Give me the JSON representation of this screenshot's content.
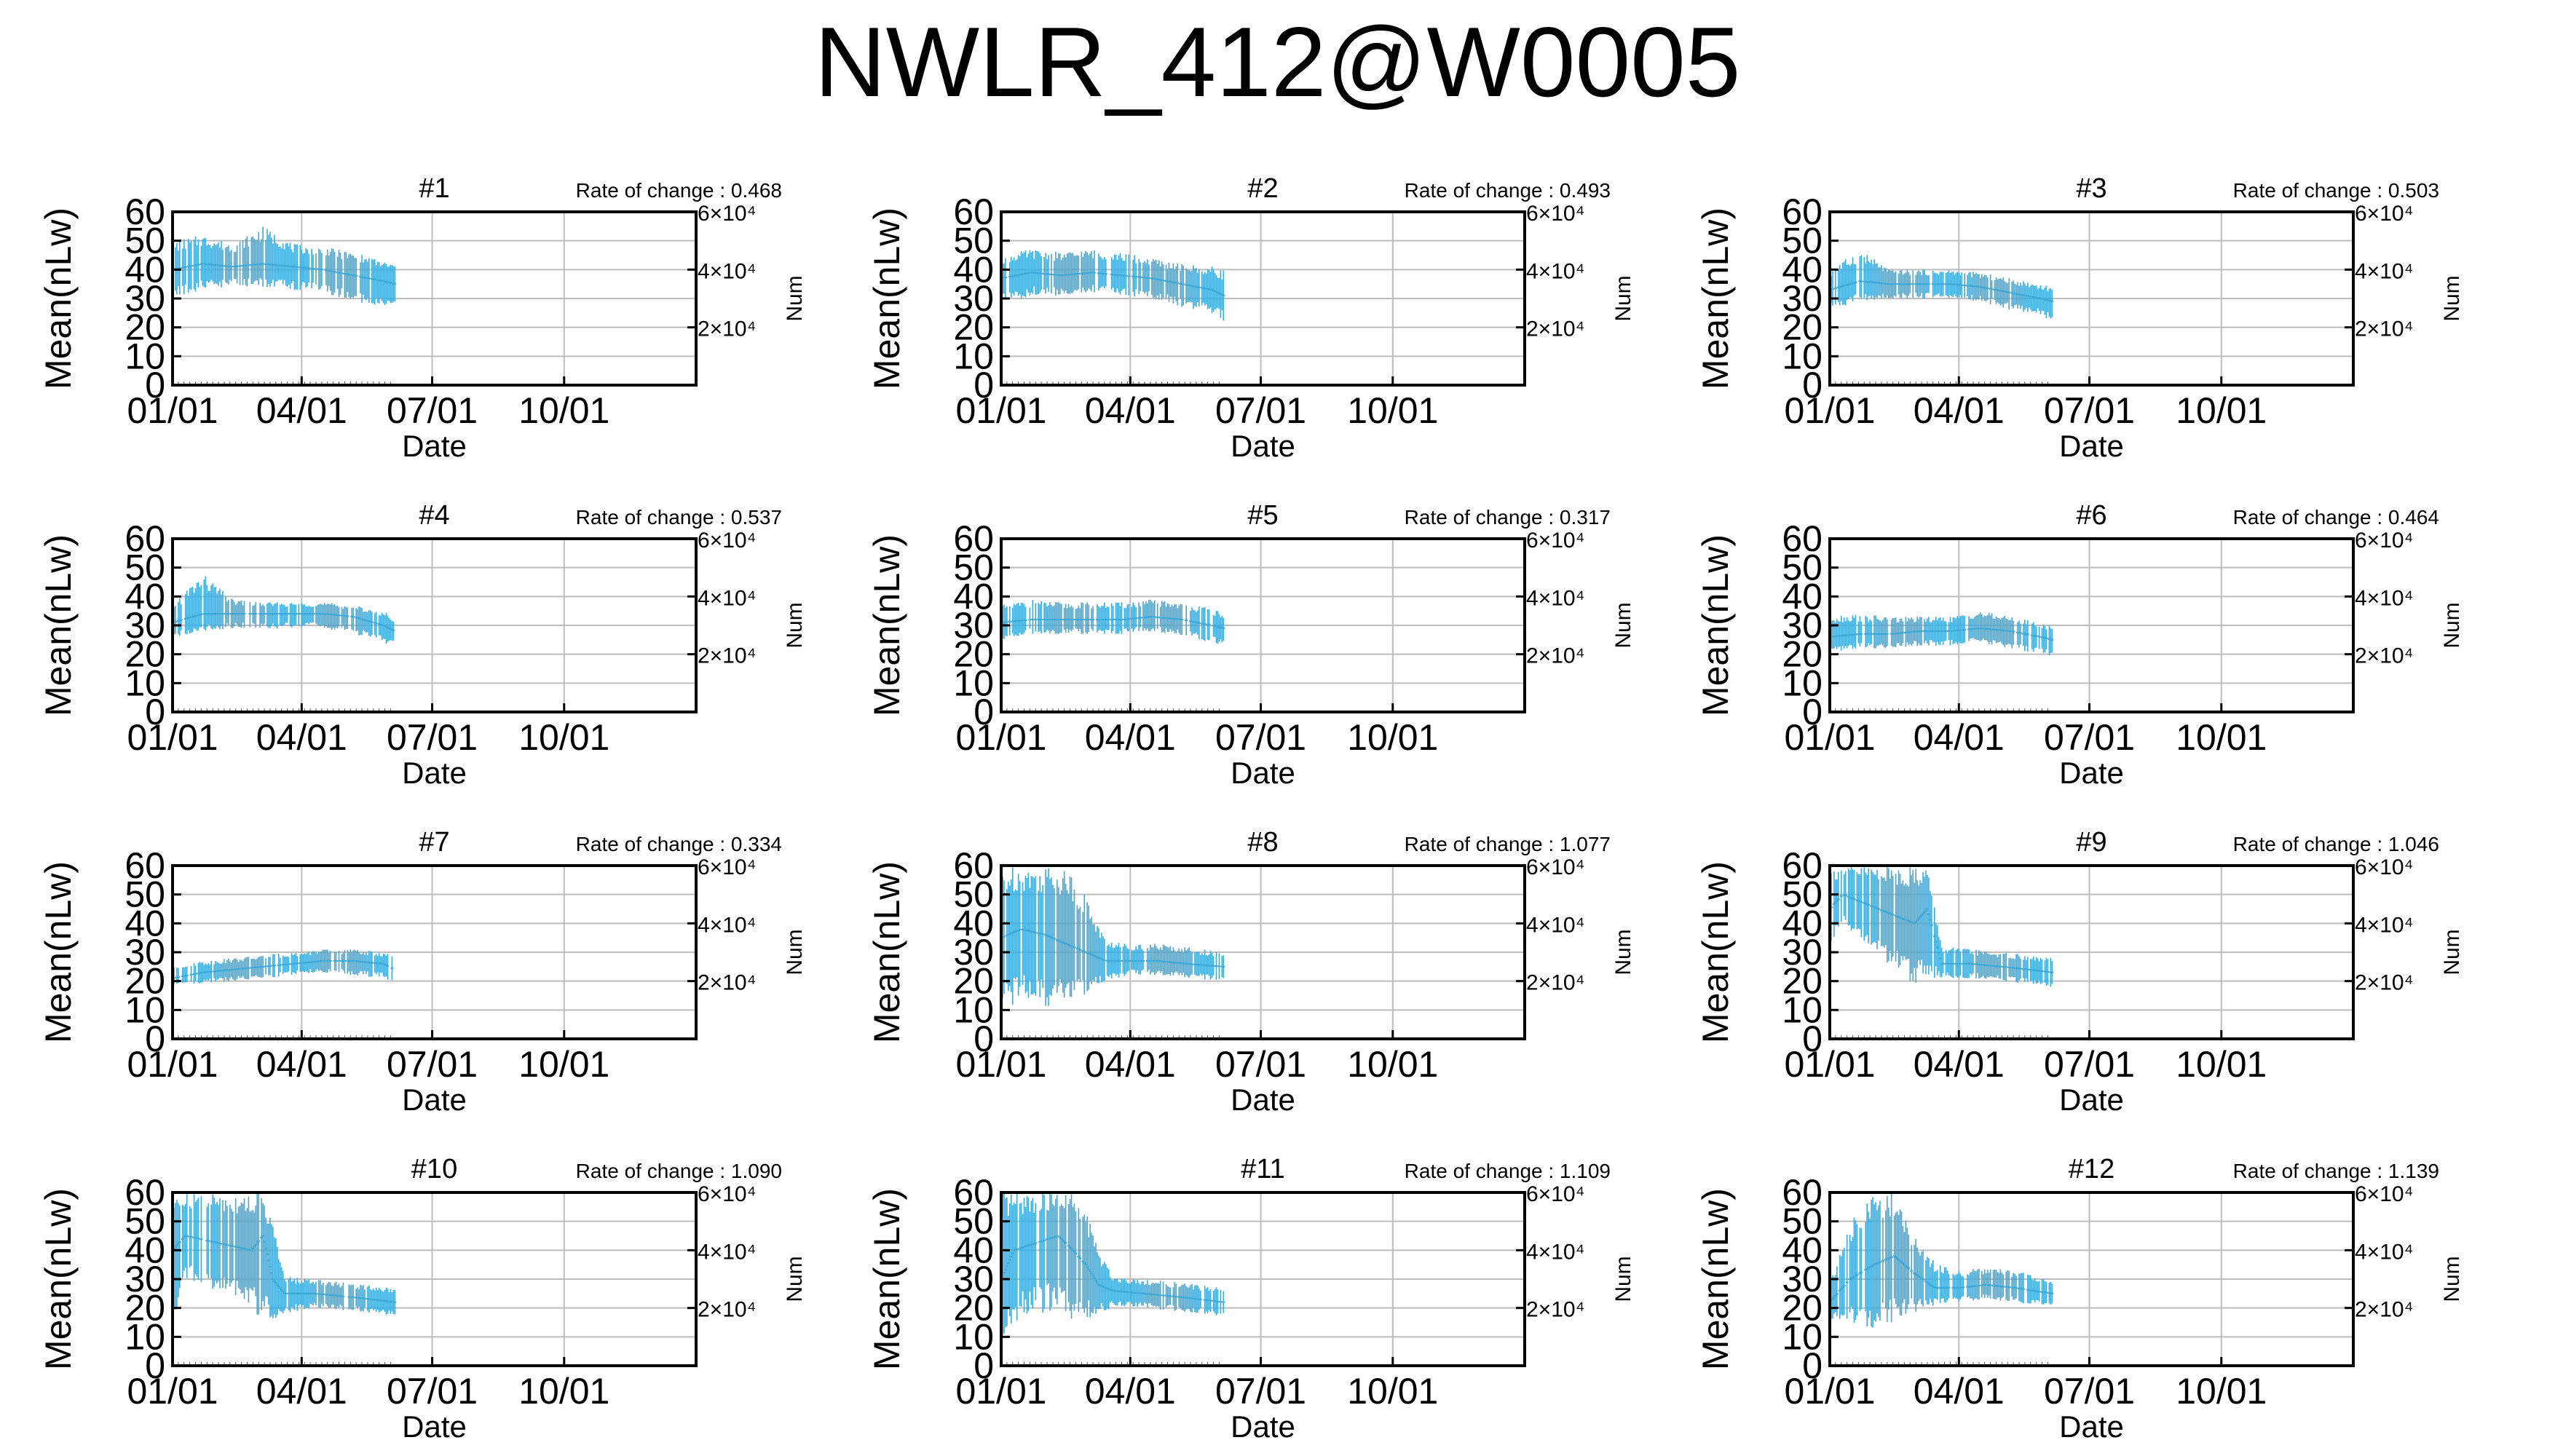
{
  "title": "NWLR_412@W0005",
  "colors": {
    "series": "#3fa9d8",
    "grid": "#bdbdbd",
    "axis": "#000000"
  },
  "chart_data": [
    {
      "type": "line",
      "title": "#1",
      "rate_label": "Rate of change : 0.468",
      "xlabel": "Date",
      "ylabel": "Mean(nLw)",
      "y2label": "Num",
      "xticks": [
        "01/01",
        "04/01",
        "07/01",
        "10/01"
      ],
      "yticks": [
        0,
        10,
        20,
        30,
        40,
        50,
        60
      ],
      "ylim": [
        0,
        60
      ],
      "y2ticks": [
        "2×10⁴",
        "4×10⁴",
        "6×10⁴"
      ],
      "y2ticks_values": [
        20000,
        40000,
        60000
      ],
      "y2lim": [
        0,
        60000
      ],
      "xlim": [
        "2001-01-01",
        "2002-01-01"
      ],
      "x": [
        "2001-01-01",
        "2001-06-05"
      ],
      "series": [
        {
          "x": [
            "2001-01-01",
            "2001-01-22",
            "2001-02-12",
            "2001-03-05",
            "2001-03-26",
            "2001-04-16",
            "2001-05-07",
            "2001-05-28",
            "2001-06-05"
          ],
          "mean": [
            40,
            42,
            41,
            42,
            41,
            40,
            38,
            36,
            35
          ],
          "low": [
            30,
            33,
            34,
            34,
            33,
            32,
            29,
            27,
            28
          ],
          "high": [
            50,
            52,
            49,
            55,
            49,
            48,
            46,
            43,
            42
          ]
        }
      ]
    },
    {
      "type": "line",
      "title": "#2",
      "rate_label": "Rate of change : 0.493",
      "xlabel": "Date",
      "ylabel": "Mean(nLw)",
      "y2label": "Num",
      "xticks": [
        "01/01",
        "04/01",
        "07/01",
        "10/01"
      ],
      "yticks": [
        0,
        10,
        20,
        30,
        40,
        50,
        60
      ],
      "ylim": [
        0,
        60
      ],
      "y2ticks": [
        "2×10⁴",
        "4×10⁴",
        "6×10⁴"
      ],
      "y2ticks_values": [
        20000,
        40000,
        60000
      ],
      "y2lim": [
        0,
        60000
      ],
      "xlim": [
        "2001-01-01",
        "2002-01-01"
      ],
      "series": [
        {
          "x": [
            "2001-01-01",
            "2001-01-22",
            "2001-02-12",
            "2001-03-05",
            "2001-03-26",
            "2001-04-16",
            "2001-05-07",
            "2001-05-28",
            "2001-06-05"
          ],
          "mean": [
            37,
            39,
            38,
            39,
            38,
            37,
            35,
            33,
            31
          ],
          "low": [
            28,
            31,
            31,
            32,
            31,
            30,
            27,
            25,
            22
          ],
          "high": [
            45,
            47,
            46,
            47,
            46,
            44,
            42,
            41,
            40
          ]
        }
      ]
    },
    {
      "type": "line",
      "title": "#3",
      "rate_label": "Rate of change : 0.503",
      "xlabel": "Date",
      "ylabel": "Mean(nLw)",
      "y2label": "Num",
      "xticks": [
        "01/01",
        "04/01",
        "07/01",
        "10/01"
      ],
      "yticks": [
        0,
        10,
        20,
        30,
        40,
        50,
        60
      ],
      "ylim": [
        0,
        60
      ],
      "y2ticks": [
        "2×10⁴",
        "4×10⁴",
        "6×10⁴"
      ],
      "y2ticks_values": [
        20000,
        40000,
        60000
      ],
      "y2lim": [
        0,
        60000
      ],
      "xlim": [
        "2001-01-01",
        "2002-01-01"
      ],
      "series": [
        {
          "x": [
            "2001-01-01",
            "2001-01-22",
            "2001-02-12",
            "2001-03-05",
            "2001-03-26",
            "2001-04-16",
            "2001-05-07",
            "2001-05-28",
            "2001-06-05"
          ],
          "mean": [
            33,
            36,
            35,
            35,
            35,
            34,
            32,
            30,
            29
          ],
          "low": [
            26,
            29,
            30,
            30,
            30,
            29,
            26,
            24,
            22
          ],
          "high": [
            40,
            47,
            40,
            40,
            40,
            39,
            37,
            35,
            34
          ]
        }
      ]
    },
    {
      "type": "line",
      "title": "#4",
      "rate_label": "Rate of change : 0.537",
      "xlabel": "Date",
      "ylabel": "Mean(nLw)",
      "y2label": "Num",
      "xticks": [
        "01/01",
        "04/01",
        "07/01",
        "10/01"
      ],
      "yticks": [
        0,
        10,
        20,
        30,
        40,
        50,
        60
      ],
      "ylim": [
        0,
        60
      ],
      "y2ticks": [
        "2×10⁴",
        "4×10⁴",
        "6×10⁴"
      ],
      "y2ticks_values": [
        20000,
        40000,
        60000
      ],
      "y2lim": [
        0,
        60000
      ],
      "xlim": [
        "2001-01-01",
        "2002-01-01"
      ],
      "series": [
        {
          "x": [
            "2001-01-01",
            "2001-01-22",
            "2001-02-12",
            "2001-03-05",
            "2001-03-26",
            "2001-04-16",
            "2001-05-07",
            "2001-05-28",
            "2001-06-05"
          ],
          "mean": [
            31,
            34,
            34,
            34,
            34,
            34,
            33,
            30,
            28
          ],
          "low": [
            25,
            28,
            29,
            29,
            29,
            29,
            27,
            24,
            22
          ],
          "high": [
            38,
            48,
            39,
            38,
            38,
            38,
            37,
            35,
            33
          ]
        }
      ]
    },
    {
      "type": "line",
      "title": "#5",
      "rate_label": "Rate of change : 0.317",
      "xlabel": "Date",
      "ylabel": "Mean(nLw)",
      "y2label": "Num",
      "xticks": [
        "01/01",
        "04/01",
        "07/01",
        "10/01"
      ],
      "yticks": [
        0,
        10,
        20,
        30,
        40,
        50,
        60
      ],
      "ylim": [
        0,
        60
      ],
      "y2ticks": [
        "2×10⁴",
        "4×10⁴",
        "6×10⁴"
      ],
      "y2ticks_values": [
        20000,
        40000,
        60000
      ],
      "y2lim": [
        0,
        60000
      ],
      "xlim": [
        "2001-01-01",
        "2002-01-01"
      ],
      "series": [
        {
          "x": [
            "2001-01-01",
            "2001-01-22",
            "2001-02-12",
            "2001-03-05",
            "2001-03-26",
            "2001-04-16",
            "2001-05-07",
            "2001-05-28",
            "2001-06-05"
          ],
          "mean": [
            31,
            32,
            32,
            32,
            32,
            33,
            32,
            30,
            29
          ],
          "low": [
            25,
            27,
            27,
            27,
            27,
            28,
            26,
            24,
            23
          ],
          "high": [
            37,
            39,
            38,
            38,
            38,
            39,
            38,
            36,
            34
          ]
        }
      ]
    },
    {
      "type": "line",
      "title": "#6",
      "rate_label": "Rate of change : 0.464",
      "xlabel": "Date",
      "ylabel": "Mean(nLw)",
      "y2label": "Num",
      "xticks": [
        "01/01",
        "04/01",
        "07/01",
        "10/01"
      ],
      "yticks": [
        0,
        10,
        20,
        30,
        40,
        50,
        60
      ],
      "ylim": [
        0,
        60
      ],
      "y2ticks": [
        "2×10⁴",
        "4×10⁴",
        "6×10⁴"
      ],
      "y2ticks_values": [
        20000,
        40000,
        60000
      ],
      "y2lim": [
        0,
        60000
      ],
      "xlim": [
        "2001-01-01",
        "2002-01-01"
      ],
      "series": [
        {
          "x": [
            "2001-01-01",
            "2001-01-22",
            "2001-02-12",
            "2001-03-05",
            "2001-03-26",
            "2001-04-16",
            "2001-05-07",
            "2001-05-28",
            "2001-06-05"
          ],
          "mean": [
            26,
            27,
            27,
            28,
            28,
            29,
            28,
            26,
            25
          ],
          "low": [
            20,
            22,
            22,
            23,
            23,
            24,
            22,
            20,
            19
          ],
          "high": [
            34,
            34,
            33,
            33,
            33,
            35,
            33,
            31,
            30
          ]
        }
      ]
    },
    {
      "type": "line",
      "title": "#7",
      "rate_label": "Rate of change : 0.334",
      "xlabel": "Date",
      "ylabel": "Mean(nLw)",
      "y2label": "Num",
      "xticks": [
        "01/01",
        "04/01",
        "07/01",
        "10/01"
      ],
      "yticks": [
        0,
        10,
        20,
        30,
        40,
        50,
        60
      ],
      "ylim": [
        0,
        60
      ],
      "y2ticks": [
        "2×10⁴",
        "4×10⁴",
        "6×10⁴"
      ],
      "y2ticks_values": [
        20000,
        40000,
        60000
      ],
      "y2lim": [
        0,
        60000
      ],
      "xlim": [
        "2001-01-01",
        "2002-01-01"
      ],
      "series": [
        {
          "x": [
            "2001-01-01",
            "2001-01-22",
            "2001-02-12",
            "2001-03-05",
            "2001-03-26",
            "2001-04-16",
            "2001-05-07",
            "2001-05-28",
            "2001-06-05"
          ],
          "mean": [
            21,
            23,
            24,
            25,
            26,
            27,
            27,
            26,
            24
          ],
          "low": [
            18,
            19,
            20,
            21,
            22,
            23,
            22,
            21,
            19
          ],
          "high": [
            26,
            27,
            28,
            29,
            30,
            31,
            31,
            30,
            29
          ]
        }
      ]
    },
    {
      "type": "line",
      "title": "#8",
      "rate_label": "Rate of change : 1.077",
      "xlabel": "Date",
      "ylabel": "Mean(nLw)",
      "y2label": "Num",
      "xticks": [
        "01/01",
        "04/01",
        "07/01",
        "10/01"
      ],
      "yticks": [
        0,
        10,
        20,
        30,
        40,
        50,
        60
      ],
      "ylim": [
        0,
        60
      ],
      "y2ticks": [
        "2×10⁴",
        "4×10⁴",
        "6×10⁴"
      ],
      "y2ticks_values": [
        20000,
        40000,
        60000
      ],
      "y2lim": [
        0,
        60000
      ],
      "xlim": [
        "2001-01-01",
        "2002-01-01"
      ],
      "series": [
        {
          "x": [
            "2001-01-01",
            "2001-01-15",
            "2001-02-01",
            "2001-02-15",
            "2001-03-01",
            "2001-03-15",
            "2001-04-01",
            "2001-04-20",
            "2001-05-10",
            "2001-06-05"
          ],
          "mean": [
            35,
            38,
            36,
            33,
            30,
            27,
            27,
            27,
            26,
            25
          ],
          "low": [
            10,
            12,
            10,
            13,
            15,
            20,
            22,
            22,
            21,
            20
          ],
          "high": [
            60,
            60,
            60,
            60,
            50,
            34,
            33,
            33,
            32,
            30
          ]
        }
      ]
    },
    {
      "type": "line",
      "title": "#9",
      "rate_label": "Rate of change : 1.046",
      "xlabel": "Date",
      "ylabel": "Mean(nLw)",
      "y2label": "Num",
      "xticks": [
        "01/01",
        "04/01",
        "07/01",
        "10/01"
      ],
      "yticks": [
        0,
        10,
        20,
        30,
        40,
        50,
        60
      ],
      "ylim": [
        0,
        60
      ],
      "y2ticks": [
        "2×10⁴",
        "4×10⁴",
        "6×10⁴"
      ],
      "y2ticks_values": [
        20000,
        40000,
        60000
      ],
      "y2lim": [
        0,
        60000
      ],
      "xlim": [
        "2001-01-01",
        "2002-01-01"
      ],
      "series": [
        {
          "x": [
            "2001-01-01",
            "2001-01-10",
            "2001-03-01",
            "2001-03-10",
            "2001-03-20",
            "2001-04-10",
            "2001-05-01",
            "2001-05-20",
            "2001-06-05"
          ],
          "mean": [
            45,
            50,
            40,
            45,
            26,
            26,
            25,
            24,
            23
          ],
          "low": [
            30,
            40,
            18,
            20,
            21,
            21,
            20,
            19,
            18
          ],
          "high": [
            60,
            60,
            60,
            60,
            32,
            31,
            30,
            29,
            28
          ]
        }
      ]
    },
    {
      "type": "line",
      "title": "#10",
      "rate_label": "Rate of change : 1.090",
      "xlabel": "Date",
      "ylabel": "Mean(nLw)",
      "y2label": "Num",
      "xticks": [
        "01/01",
        "04/01",
        "07/01",
        "10/01"
      ],
      "yticks": [
        0,
        10,
        20,
        30,
        40,
        50,
        60
      ],
      "ylim": [
        0,
        60
      ],
      "y2ticks": [
        "2×10⁴",
        "4×10⁴",
        "6×10⁴"
      ],
      "y2ticks_values": [
        20000,
        40000,
        60000
      ],
      "y2lim": [
        0,
        60000
      ],
      "xlim": [
        "2001-01-01",
        "2002-01-01"
      ],
      "series": [
        {
          "x": [
            "2001-01-01",
            "2001-01-10",
            "2001-02-25",
            "2001-03-05",
            "2001-03-12",
            "2001-03-20",
            "2001-04-10",
            "2001-05-01",
            "2001-05-20",
            "2001-06-05"
          ],
          "mean": [
            40,
            45,
            40,
            45,
            30,
            25,
            25,
            24,
            23,
            22
          ],
          "low": [
            10,
            30,
            20,
            15,
            15,
            18,
            20,
            19,
            18,
            17
          ],
          "high": [
            60,
            60,
            60,
            60,
            50,
            31,
            30,
            29,
            28,
            27
          ]
        }
      ]
    },
    {
      "type": "line",
      "title": "#11",
      "rate_label": "Rate of change : 1.109",
      "xlabel": "Date",
      "ylabel": "Mean(nLw)",
      "y2label": "Num",
      "xticks": [
        "01/01",
        "04/01",
        "07/01",
        "10/01"
      ],
      "yticks": [
        0,
        10,
        20,
        30,
        40,
        50,
        60
      ],
      "ylim": [
        0,
        60
      ],
      "y2ticks": [
        "2×10⁴",
        "4×10⁴",
        "6×10⁴"
      ],
      "y2ticks_values": [
        20000,
        40000,
        60000
      ],
      "y2lim": [
        0,
        60000
      ],
      "xlim": [
        "2001-01-01",
        "2002-01-01"
      ],
      "series": [
        {
          "x": [
            "2001-01-01",
            "2001-01-10",
            "2001-02-10",
            "2001-02-20",
            "2001-03-01",
            "2001-03-10",
            "2001-03-20",
            "2001-04-10",
            "2001-05-01",
            "2001-05-20",
            "2001-06-05"
          ],
          "mean": [
            30,
            40,
            45,
            40,
            35,
            28,
            26,
            25,
            24,
            23,
            22
          ],
          "low": [
            10,
            15,
            20,
            15,
            15,
            18,
            20,
            20,
            19,
            18,
            17
          ],
          "high": [
            60,
            60,
            60,
            60,
            55,
            40,
            31,
            30,
            29,
            28,
            27
          ]
        }
      ]
    },
    {
      "type": "line",
      "title": "#12",
      "rate_label": "Rate of change : 1.139",
      "xlabel": "Date",
      "ylabel": "Mean(nLw)",
      "y2label": "Num",
      "xticks": [
        "01/01",
        "04/01",
        "07/01",
        "10/01"
      ],
      "yticks": [
        0,
        10,
        20,
        30,
        40,
        50,
        60
      ],
      "ylim": [
        0,
        60
      ],
      "y2ticks": [
        "2×10⁴",
        "4×10⁴",
        "6×10⁴"
      ],
      "y2ticks_values": [
        20000,
        40000,
        60000
      ],
      "y2lim": [
        0,
        60000
      ],
      "xlim": [
        "2001-01-01",
        "2002-01-01"
      ],
      "series": [
        {
          "x": [
            "2001-01-01",
            "2001-01-15",
            "2001-02-01",
            "2001-02-15",
            "2001-03-01",
            "2001-03-15",
            "2001-04-01",
            "2001-04-20",
            "2001-05-10",
            "2001-06-05"
          ],
          "mean": [
            22,
            30,
            35,
            38,
            32,
            27,
            27,
            28,
            27,
            25
          ],
          "low": [
            15,
            15,
            12,
            15,
            18,
            21,
            22,
            23,
            22,
            20
          ],
          "high": [
            30,
            50,
            60,
            60,
            45,
            36,
            33,
            34,
            33,
            30
          ]
        }
      ]
    }
  ]
}
